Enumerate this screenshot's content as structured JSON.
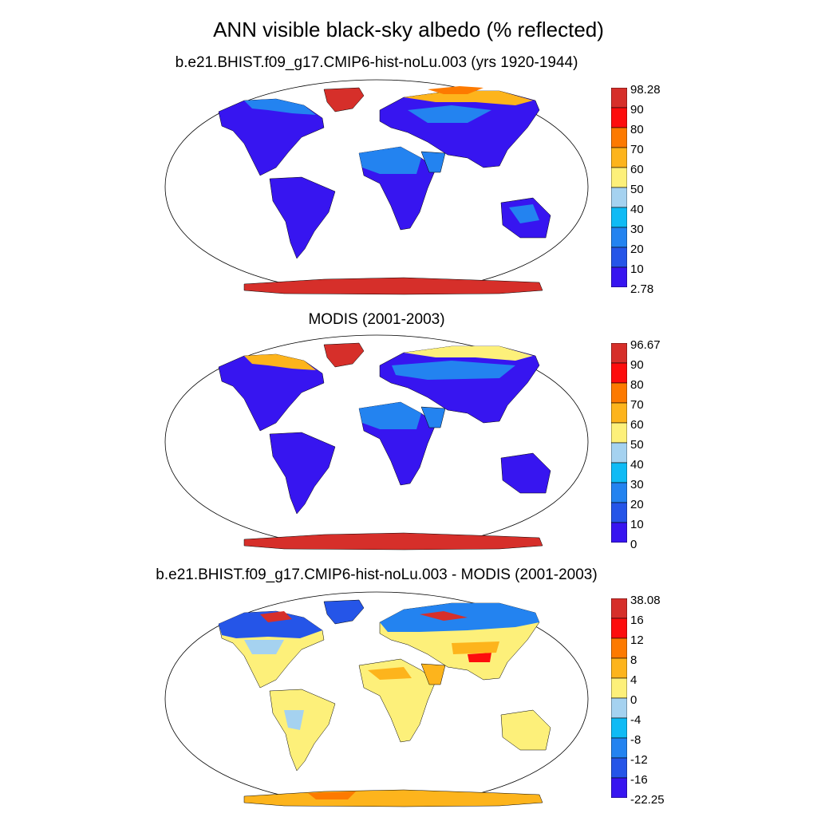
{
  "figure": {
    "title": "ANN visible black-sky albedo (% reflected)"
  },
  "panels": [
    {
      "subtitle": "b.e21.BHIST.f09_g17.CMIP6-hist-noLu.003 (yrs 1920-1944)",
      "colorbar": {
        "labels": [
          "98.28",
          "90",
          "80",
          "70",
          "60",
          "50",
          "40",
          "30",
          "20",
          "10",
          "2.78"
        ],
        "colors": [
          "#d62f2a",
          "#fd0d0d",
          "#fd7a00",
          "#fdb41c",
          "#fdf07a",
          "#a5d2f0",
          "#0fbbf5",
          "#2383f0",
          "#2555e8",
          "#3715f0"
        ]
      }
    },
    {
      "subtitle": "MODIS (2001-2003)",
      "colorbar": {
        "labels": [
          "96.67",
          "90",
          "80",
          "70",
          "60",
          "50",
          "40",
          "30",
          "20",
          "10",
          "0"
        ],
        "colors": [
          "#d62f2a",
          "#fd0d0d",
          "#fd7a00",
          "#fdb41c",
          "#fdf07a",
          "#a5d2f0",
          "#0fbbf5",
          "#2383f0",
          "#2555e8",
          "#3715f0"
        ]
      }
    },
    {
      "subtitle": "b.e21.BHIST.f09_g17.CMIP6-hist-noLu.003 - MODIS (2001-2003)",
      "colorbar": {
        "labels": [
          "38.08",
          "16",
          "12",
          "8",
          "4",
          "0",
          "-4",
          "-8",
          "-12",
          "-16",
          "-22.25"
        ],
        "colors": [
          "#d62f2a",
          "#fd0d0d",
          "#fd7a00",
          "#fdb41c",
          "#fdf07a",
          "#a5d2f0",
          "#0fbbf5",
          "#2383f0",
          "#2555e8",
          "#3715f0"
        ]
      }
    }
  ]
}
